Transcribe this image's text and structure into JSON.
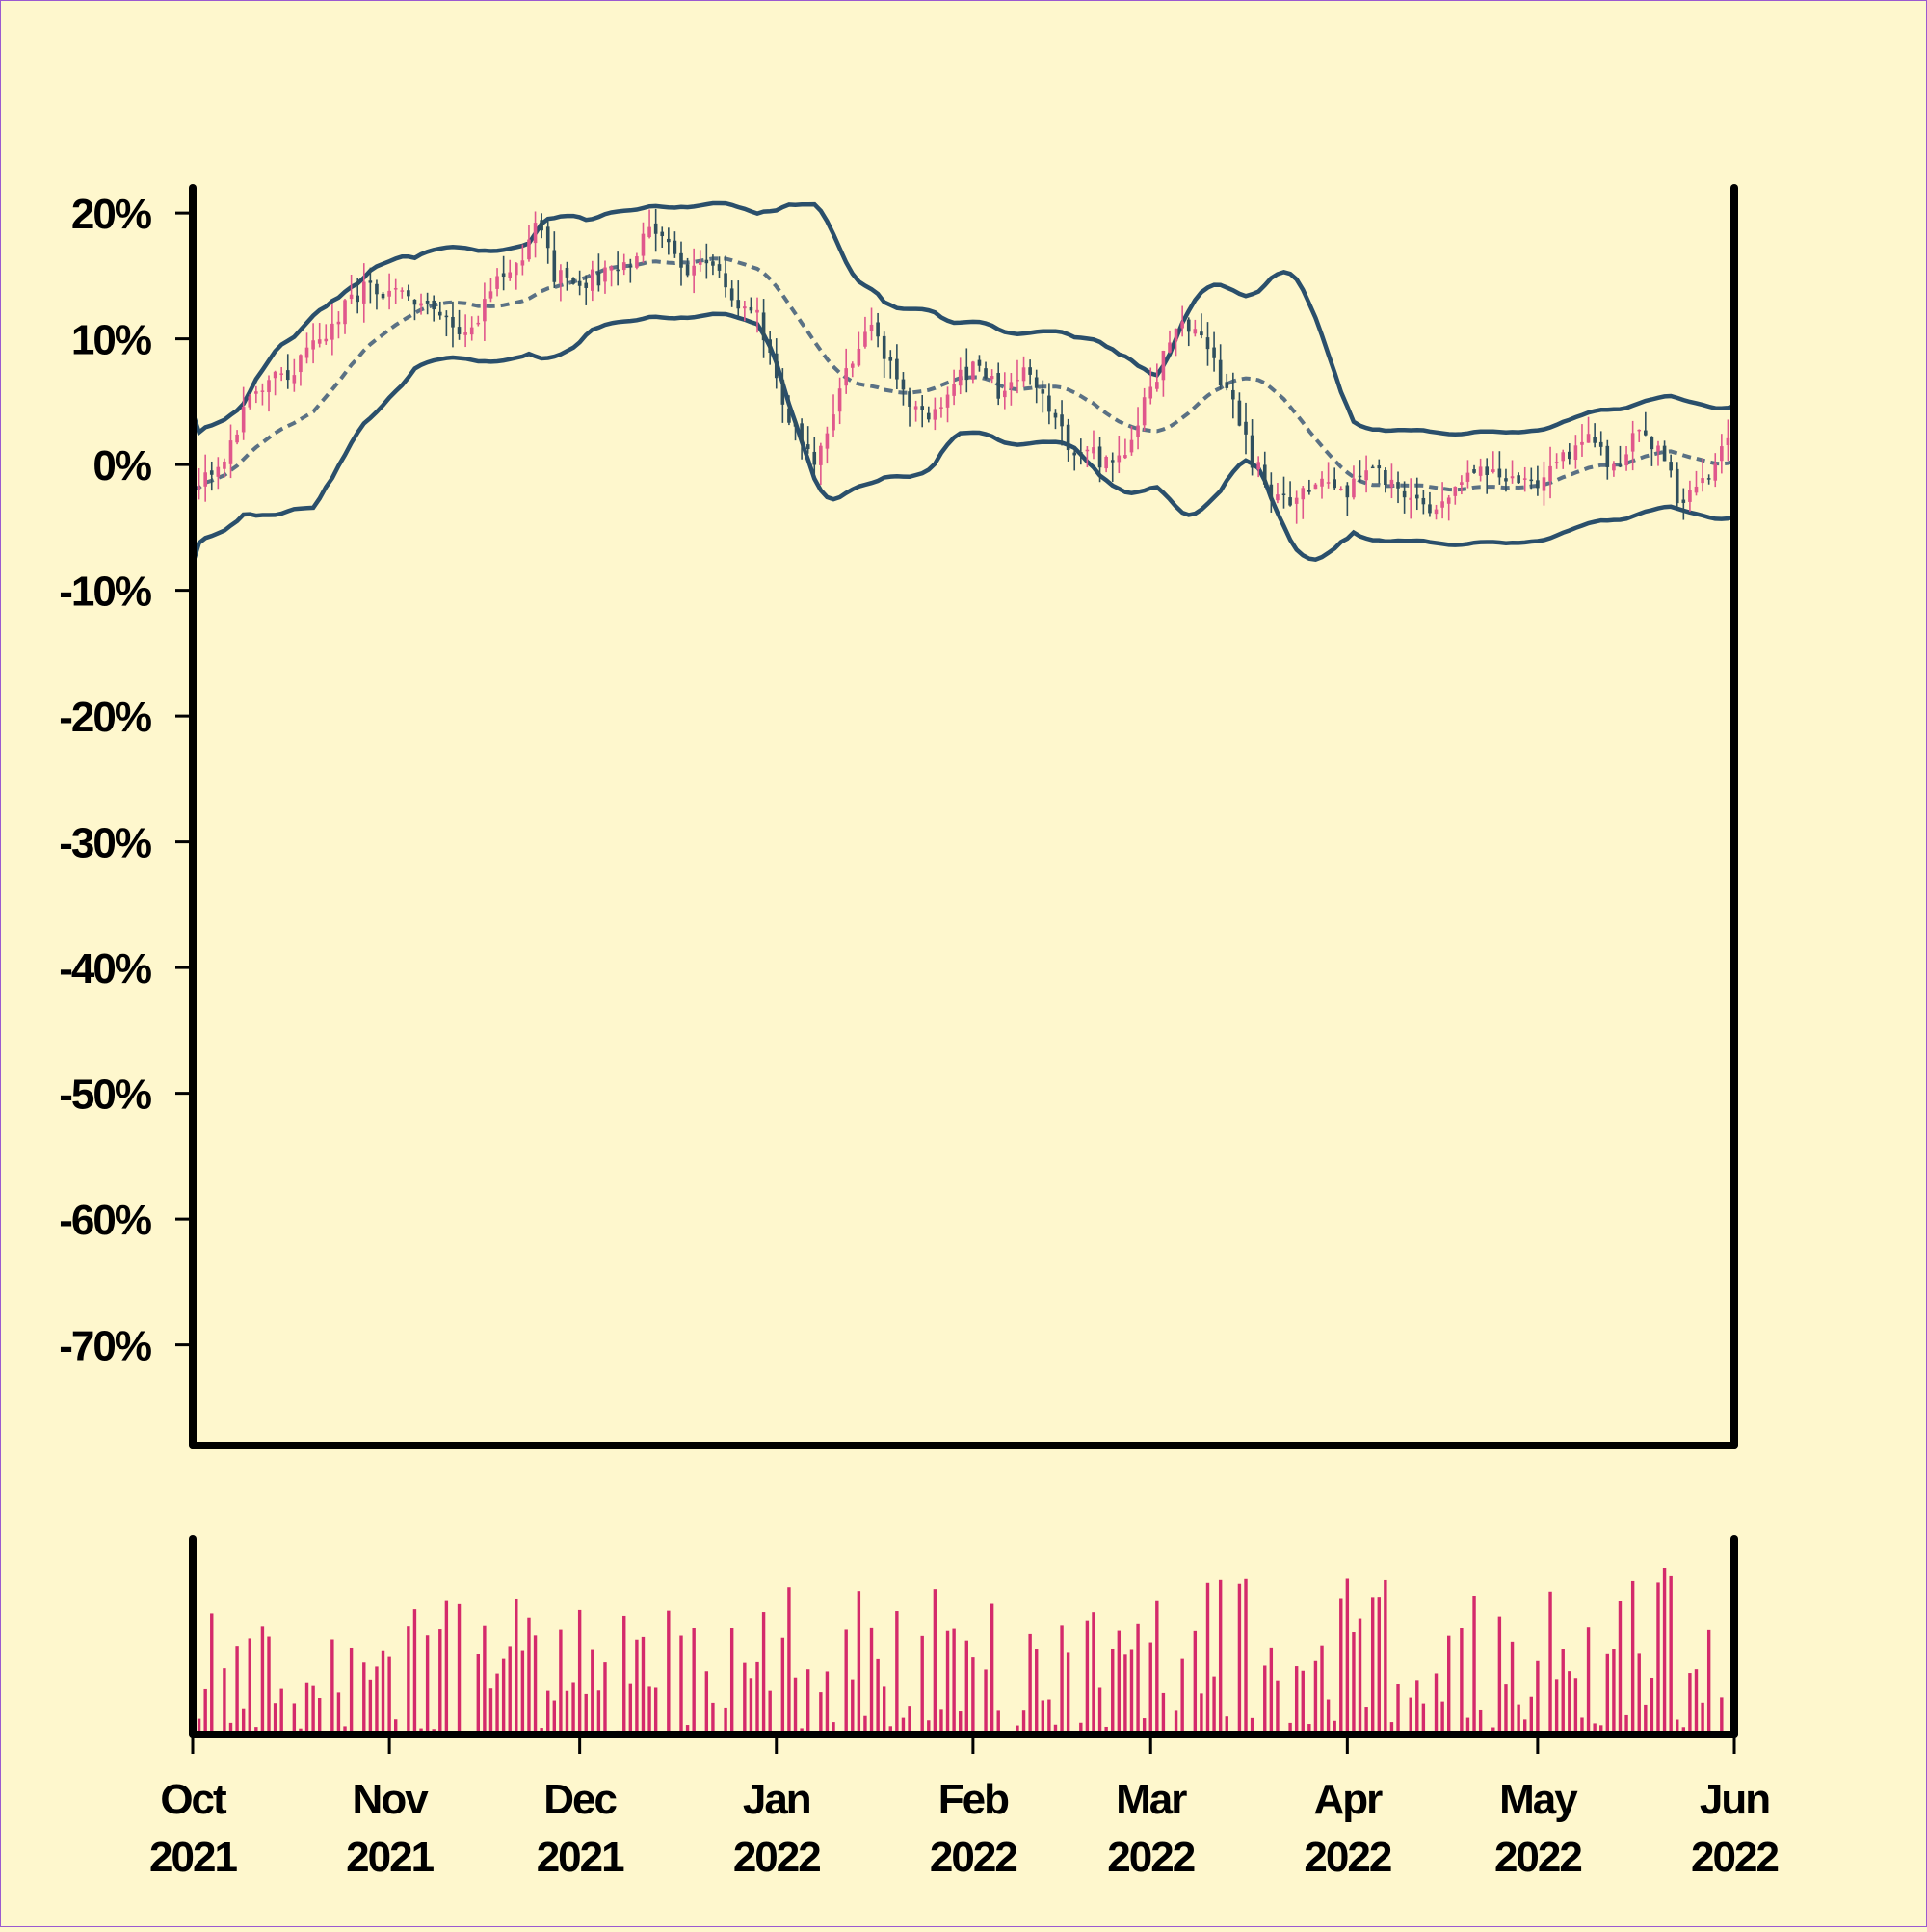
{
  "chart_data": {
    "type": "candlestick",
    "title": "",
    "xlabel": "",
    "ylabel": "",
    "y_unit": "%",
    "ylim": [
      -78,
      22
    ],
    "yticks": [
      20,
      10,
      0,
      -10,
      -20,
      -30,
      -40,
      -50,
      -60,
      -70
    ],
    "ytick_labels": [
      "20%",
      "10%",
      "0%",
      "-10%",
      "-20%",
      "-30%",
      "-40%",
      "-50%",
      "-60%",
      "-70%"
    ],
    "xlim": [
      "2021-10-01",
      "2022-06-01"
    ],
    "xticks": [
      {
        "date": "2021-10-01",
        "month": "Oct",
        "year": "2021"
      },
      {
        "date": "2021-11-01",
        "month": "Nov",
        "year": "2021"
      },
      {
        "date": "2021-12-01",
        "month": "Dec",
        "year": "2021"
      },
      {
        "date": "2022-01-01",
        "month": "Jan",
        "year": "2022"
      },
      {
        "date": "2022-02-01",
        "month": "Feb",
        "year": "2022"
      },
      {
        "date": "2022-03-01",
        "month": "Mar",
        "year": "2022"
      },
      {
        "date": "2022-04-01",
        "month": "Apr",
        "year": "2022"
      },
      {
        "date": "2022-05-01",
        "month": "May",
        "year": "2022"
      },
      {
        "date": "2022-06-01",
        "month": "Jun",
        "year": "2022"
      }
    ],
    "close_anchors": [
      [
        "2021-10-01",
        -1.5
      ],
      [
        "2021-10-05",
        0
      ],
      [
        "2021-10-09",
        4
      ],
      [
        "2021-10-13",
        6.5
      ],
      [
        "2021-10-18",
        8
      ],
      [
        "2021-10-22",
        10.5
      ],
      [
        "2021-10-26",
        13
      ],
      [
        "2021-10-29",
        14.5
      ],
      [
        "2021-11-02",
        13.5
      ],
      [
        "2021-11-07",
        12.5
      ],
      [
        "2021-11-10",
        11
      ],
      [
        "2021-11-14",
        11
      ],
      [
        "2021-11-18",
        14.5
      ],
      [
        "2021-11-22",
        17
      ],
      [
        "2021-11-24",
        19.5
      ],
      [
        "2021-11-27",
        15
      ],
      [
        "2021-12-01",
        14.5
      ],
      [
        "2021-12-05",
        15
      ],
      [
        "2021-12-09",
        16
      ],
      [
        "2021-12-12",
        19.5
      ],
      [
        "2021-12-14",
        18
      ],
      [
        "2021-12-18",
        15.5
      ],
      [
        "2021-12-22",
        15.5
      ],
      [
        "2021-12-26",
        13
      ],
      [
        "2021-12-29",
        11.5
      ],
      [
        "2022-01-01",
        7
      ],
      [
        "2022-01-05",
        1
      ],
      [
        "2022-01-07",
        0.5
      ],
      [
        "2022-01-10",
        4
      ],
      [
        "2022-01-13",
        8.5
      ],
      [
        "2022-01-16",
        11.5
      ],
      [
        "2022-01-19",
        8
      ],
      [
        "2022-01-22",
        5
      ],
      [
        "2022-01-25",
        3.5
      ],
      [
        "2022-01-29",
        6.5
      ],
      [
        "2022-02-01",
        7.5
      ],
      [
        "2022-02-05",
        6
      ],
      [
        "2022-02-09",
        7
      ],
      [
        "2022-02-13",
        4.5
      ],
      [
        "2022-02-17",
        1
      ],
      [
        "2022-02-21",
        0.5
      ],
      [
        "2022-02-25",
        0.5
      ],
      [
        "2022-02-28",
        5
      ],
      [
        "2022-03-03",
        8.5
      ],
      [
        "2022-03-06",
        11
      ],
      [
        "2022-03-10",
        9
      ],
      [
        "2022-03-14",
        5
      ],
      [
        "2022-03-17",
        0.5
      ],
      [
        "2022-03-20",
        -2.5
      ],
      [
        "2022-03-24",
        -2.5
      ],
      [
        "2022-03-28",
        -0.5
      ],
      [
        "2022-04-01",
        -2.5
      ],
      [
        "2022-04-05",
        0
      ],
      [
        "2022-04-09",
        -2.5
      ],
      [
        "2022-04-14",
        -3.5
      ],
      [
        "2022-04-18",
        -1.5
      ],
      [
        "2022-04-23",
        -0.5
      ],
      [
        "2022-04-28",
        -1.5
      ],
      [
        "2022-05-02",
        -1.5
      ],
      [
        "2022-05-06",
        1
      ],
      [
        "2022-05-10",
        2.5
      ],
      [
        "2022-05-13",
        -0.5
      ],
      [
        "2022-05-17",
        2.5
      ],
      [
        "2022-05-20",
        1.5
      ],
      [
        "2022-05-23",
        -2.5
      ],
      [
        "2022-05-26",
        -2.5
      ],
      [
        "2022-05-29",
        0.5
      ],
      [
        "2022-06-01",
        2
      ]
    ],
    "bollinger_bands": {
      "window": 20,
      "upper_color": "#2a4f6b",
      "middle_color": "#5a7184",
      "lower_color": "#2a4f6b",
      "middle_style": "dashed"
    },
    "candle_colors": {
      "up": "#e0578c",
      "down": "#2f4f5e"
    },
    "volume": {
      "type": "bar",
      "color": "#d42a6b",
      "relative_max": 1.0
    },
    "grid": false,
    "legend": "none"
  },
  "colors": {
    "background": "#fef7cd",
    "axis": "#000000",
    "frame_border": "#9b59d0"
  }
}
